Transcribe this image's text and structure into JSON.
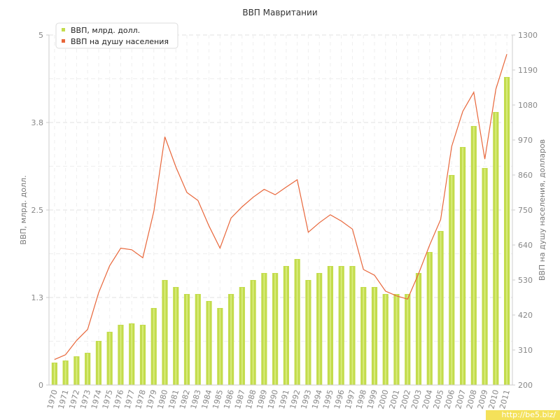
{
  "chart_data": {
    "type": "bar",
    "title": "ВВП Мавритании",
    "ylabel": "ВВП, млрд. долл.",
    "y2label": "ВВП на душу населения, долларов",
    "legend_position": "top-left",
    "grid": true,
    "colors": {
      "bars": "#c3dc4c",
      "bar_highlight": "#d8ec7c",
      "line": "#e8663a"
    },
    "categories": [
      "1970",
      "1971",
      "1972",
      "1973",
      "1974",
      "1975",
      "1976",
      "1977",
      "1978",
      "1979",
      "1980",
      "1981",
      "1982",
      "1983",
      "1984",
      "1985",
      "1986",
      "1987",
      "1988",
      "1989",
      "1990",
      "1991",
      "1992",
      "1993",
      "1994",
      "1995",
      "1996",
      "1997",
      "1998",
      "1999",
      "2000",
      "2001",
      "2002",
      "2003",
      "2004",
      "2005",
      "2006",
      "2007",
      "2008",
      "2009",
      "2010",
      "2011"
    ],
    "yticks": [
      "0",
      "1.3",
      "2.5",
      "3.8",
      "5"
    ],
    "ylim": [
      0,
      5
    ],
    "y2ticks": [
      "200",
      "310",
      "420",
      "530",
      "640",
      "750",
      "860",
      "970",
      "1080",
      "1190",
      "1300"
    ],
    "y2lim": [
      200,
      1300
    ],
    "series": [
      {
        "name": "ВВП, млрд. долл.",
        "type": "bar",
        "axis": "left",
        "values": [
          0.32,
          0.35,
          0.41,
          0.46,
          0.63,
          0.76,
          0.86,
          0.88,
          0.86,
          1.1,
          1.5,
          1.4,
          1.3,
          1.3,
          1.2,
          1.1,
          1.3,
          1.4,
          1.5,
          1.6,
          1.6,
          1.7,
          1.8,
          1.5,
          1.6,
          1.7,
          1.7,
          1.7,
          1.4,
          1.4,
          1.3,
          1.3,
          1.3,
          1.6,
          1.9,
          2.2,
          3.0,
          3.4,
          3.7,
          3.1,
          3.9,
          4.4
        ]
      },
      {
        "name": "ВВП на душу населения",
        "type": "line",
        "axis": "right",
        "values": [
          280,
          295,
          340,
          375,
          490,
          575,
          630,
          625,
          600,
          745,
          980,
          885,
          805,
          780,
          700,
          630,
          725,
          760,
          790,
          815,
          798,
          822,
          845,
          680,
          710,
          735,
          715,
          690,
          563,
          545,
          495,
          480,
          470,
          550,
          640,
          720,
          950,
          1060,
          1120,
          910,
          1130,
          1240
        ]
      }
    ]
  },
  "watermark": "http://be5.biz/"
}
